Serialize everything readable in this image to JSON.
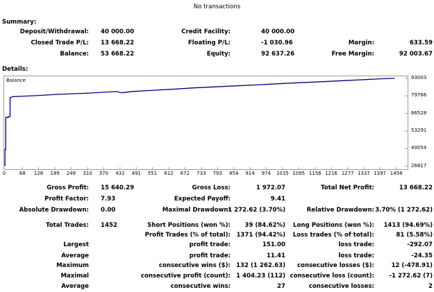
{
  "header": {
    "no_transactions": "No transactions"
  },
  "summary": {
    "title": "Summary:",
    "deposit_label": "Deposit/Withdrawal:",
    "deposit_value": "40 000.00",
    "credit_label": "Credit Facility:",
    "credit_value": "40 000.00",
    "closed_pl_label": "Closed Trade P/L:",
    "closed_pl_value": "13 668.22",
    "floating_label": "Floating P/L:",
    "floating_value": "-1 030.96",
    "margin_label": "Margin:",
    "margin_value": "633.59",
    "balance_label": "Balance:",
    "balance_value": "53 668.22",
    "equity_label": "Equity:",
    "equity_value": "92 637.26",
    "free_margin_label": "Free Margin:",
    "free_margin_value": "92 003.67"
  },
  "details": {
    "title": "Details:"
  },
  "chart_data": {
    "type": "line",
    "title": "Balance",
    "xlabel": "",
    "ylabel": "",
    "x_ticks": [
      "0",
      "68",
      "128",
      "189",
      "249",
      "310",
      "370",
      "431",
      "491",
      "551",
      "612",
      "672",
      "733",
      "793",
      "854",
      "914",
      "974",
      "1035",
      "1095",
      "1156",
      "1216",
      "1277",
      "1337",
      "1397",
      "1458"
    ],
    "y_ticks": [
      "93003",
      "79766",
      "66528",
      "53291",
      "40054",
      "26817"
    ],
    "xlim": [
      0,
      1500
    ],
    "ylim": [
      24500,
      94500
    ],
    "series": [
      {
        "color": "#00007f",
        "x": [
          0,
          3,
          3,
          6,
          6,
          15,
          15,
          22,
          22,
          34,
          60,
          130,
          200,
          300,
          420,
          432,
          440,
          480,
          540,
          620,
          700,
          780,
          860,
          940,
          1020,
          1100,
          1180,
          1260,
          1340,
          1400,
          1452
        ],
        "y": [
          27500,
          27500,
          39500,
          39500,
          63500,
          63500,
          64000,
          64000,
          78500,
          79200,
          79400,
          80100,
          80900,
          81700,
          83000,
          82200,
          82100,
          83100,
          83800,
          84700,
          85700,
          86500,
          87300,
          88000,
          88900,
          89700,
          90400,
          91200,
          92000,
          92600,
          93000
        ]
      }
    ]
  },
  "stats": {
    "gross_profit_label": "Gross Profit:",
    "gross_profit_value": "15 640.29",
    "gross_loss_label": "Gross Loss:",
    "gross_loss_value": "1 972.07",
    "total_net_label": "Total Net Profit:",
    "total_net_value": "13 668.22",
    "profit_factor_label": "Profit Factor:",
    "profit_factor_value": "7.93",
    "expected_payoff_label": "Expected Payoff:",
    "expected_payoff_value": "9.41",
    "abs_dd_label": "Absolute Drawdown:",
    "abs_dd_value": "0.00",
    "max_dd_label": "Maximal Drawdown:",
    "max_dd_value": "1 272.62 (3.70%)",
    "rel_dd_label": "Relative Drawdown:",
    "rel_dd_value": "3.70% (1 272.62)",
    "total_trades_label": "Total Trades:",
    "total_trades_value": "1452",
    "short_label": "Short Positions (won %):",
    "short_value": "39 (84.62%)",
    "long_label": "Long Positions (won %):",
    "long_value": "1413 (94.69%)",
    "profit_trades_label": "Profit Trades (% of total):",
    "profit_trades_value": "1371 (94.42%)",
    "loss_trades_label": "Loss trades (% of total):",
    "loss_trades_value": "81 (5.58%)",
    "largest_label": "Largest",
    "largest_profit_label": "profit trade:",
    "largest_profit_value": "151.00",
    "largest_loss_label": "loss trade:",
    "largest_loss_value": "-292.07",
    "average_label": "Average",
    "average_profit_label": "profit trade:",
    "average_profit_value": "11.41",
    "average_loss_label": "loss trade:",
    "average_loss_value": "-24.35",
    "maximum_label": "Maximum",
    "max_cons_wins_label": "consecutive wins ($):",
    "max_cons_wins_value": "132 (1 262.63)",
    "max_cons_losses_label": "consecutive losses ($):",
    "max_cons_losses_value": "12 (-478.91)",
    "maximal_label": "Maximal",
    "maximal_cons_profit_label": "consecutive profit (count):",
    "maximal_cons_profit_value": "1 404.23 (112)",
    "maximal_cons_loss_label": "consecutive loss (count):",
    "maximal_cons_loss_value": "-1 272.62 (7)",
    "average2_label": "Average",
    "avg_cons_wins_label": "consecutive wins:",
    "avg_cons_wins_value": "27",
    "avg_cons_losses_label": "consecutive losses:",
    "avg_cons_losses_value": "2"
  }
}
